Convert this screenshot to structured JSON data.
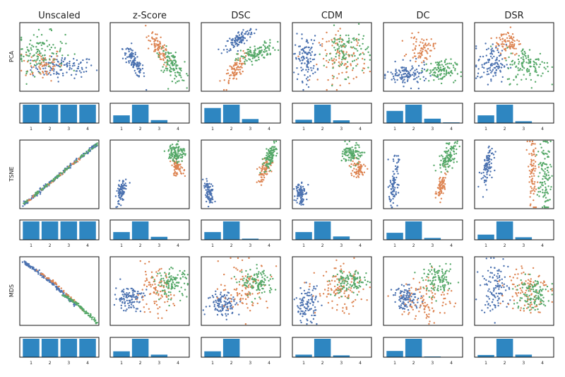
{
  "colors": {
    "blue": "#4c72b0",
    "orange": "#dd8452",
    "green": "#55a868",
    "bar": "#2e86c1"
  },
  "col_titles": [
    "Unscaled",
    "z-Score",
    "DSC",
    "CDM",
    "DC",
    "DSR"
  ],
  "row_labels": [
    "PCA",
    "TSNE",
    "MDS"
  ],
  "bar_tick_labels": [
    "1",
    "2",
    "3",
    "4"
  ],
  "chart_data": {
    "type": "scatter",
    "grid": false,
    "legend": "none",
    "scatter_panels": [
      [
        {
          "method": "Unscaled",
          "clusters": [
            {
              "color": "blue",
              "cx": 0.55,
              "cy": 0.35,
              "sx": 0.2,
              "sy": 0.08,
              "n": 110
            },
            {
              "color": "orange",
              "cx": 0.28,
              "cy": 0.4,
              "sx": 0.13,
              "sy": 0.12,
              "n": 70
            },
            {
              "color": "green",
              "cx": 0.25,
              "cy": 0.58,
              "sx": 0.16,
              "sy": 0.14,
              "n": 110
            }
          ]
        },
        {
          "method": "z-Score",
          "clusters": [
            {
              "color": "blue",
              "cx": 0.3,
              "cy": 0.42,
              "sx": 0.07,
              "sy": 0.12,
              "rho": -0.8,
              "n": 110
            },
            {
              "color": "orange",
              "cx": 0.62,
              "cy": 0.62,
              "sx": 0.06,
              "sy": 0.12,
              "rho": -0.75,
              "n": 90
            },
            {
              "color": "green",
              "cx": 0.78,
              "cy": 0.38,
              "sx": 0.08,
              "sy": 0.12,
              "rho": -0.6,
              "n": 110
            }
          ]
        },
        {
          "method": "DSC",
          "clusters": [
            {
              "color": "blue",
              "cx": 0.48,
              "cy": 0.76,
              "sx": 0.09,
              "sy": 0.08,
              "rho": 0.7,
              "n": 110
            },
            {
              "color": "orange",
              "cx": 0.42,
              "cy": 0.3,
              "sx": 0.07,
              "sy": 0.12,
              "rho": 0.75,
              "n": 80
            },
            {
              "color": "green",
              "cx": 0.7,
              "cy": 0.55,
              "sx": 0.12,
              "sy": 0.08,
              "rho": 0.6,
              "n": 120
            }
          ]
        },
        {
          "method": "CDM",
          "clusters": [
            {
              "color": "blue",
              "cx": 0.17,
              "cy": 0.48,
              "sx": 0.07,
              "sy": 0.16,
              "n": 110
            },
            {
              "color": "orange",
              "cx": 0.64,
              "cy": 0.48,
              "sx": 0.15,
              "sy": 0.18,
              "n": 110
            },
            {
              "color": "green",
              "cx": 0.68,
              "cy": 0.58,
              "sx": 0.14,
              "sy": 0.17,
              "n": 110
            }
          ]
        },
        {
          "method": "DC",
          "clusters": [
            {
              "color": "blue",
              "cx": 0.3,
              "cy": 0.24,
              "sx": 0.13,
              "sy": 0.08,
              "n": 120
            },
            {
              "color": "orange",
              "cx": 0.48,
              "cy": 0.62,
              "sx": 0.08,
              "sy": 0.09,
              "n": 70
            },
            {
              "color": "green",
              "cx": 0.72,
              "cy": 0.3,
              "sx": 0.1,
              "sy": 0.08,
              "n": 110
            }
          ]
        },
        {
          "method": "DSR",
          "clusters": [
            {
              "color": "blue",
              "cx": 0.22,
              "cy": 0.4,
              "sx": 0.09,
              "sy": 0.14,
              "n": 110
            },
            {
              "color": "orange",
              "cx": 0.42,
              "cy": 0.72,
              "sx": 0.08,
              "sy": 0.1,
              "n": 80
            },
            {
              "color": "green",
              "cx": 0.68,
              "cy": 0.38,
              "sx": 0.14,
              "sy": 0.13,
              "n": 120
            }
          ]
        }
      ],
      [
        {
          "method": "Unscaled",
          "clusters": [
            {
              "color": "blue",
              "type": "line",
              "x0": 0.03,
              "y0": 0.04,
              "x1": 0.97,
              "y1": 0.94,
              "spread": 0.012,
              "n": 160
            },
            {
              "color": "orange",
              "type": "line",
              "x0": 0.1,
              "y0": 0.11,
              "x1": 0.8,
              "y1": 0.77,
              "spread": 0.008,
              "n": 60
            },
            {
              "color": "green",
              "type": "line",
              "x0": 0.05,
              "y0": 0.06,
              "x1": 0.98,
              "y1": 0.95,
              "spread": 0.008,
              "n": 90
            }
          ]
        },
        {
          "method": "z-Score",
          "clusters": [
            {
              "color": "blue",
              "cx": 0.14,
              "cy": 0.24,
              "sx": 0.03,
              "sy": 0.09,
              "rho": 0.4,
              "n": 90
            },
            {
              "color": "orange",
              "cx": 0.85,
              "cy": 0.6,
              "sx": 0.04,
              "sy": 0.06,
              "n": 70
            },
            {
              "color": "green",
              "cx": 0.84,
              "cy": 0.82,
              "sx": 0.05,
              "sy": 0.07,
              "n": 110
            }
          ]
        },
        {
          "method": "DSC",
          "clusters": [
            {
              "color": "blue",
              "cx": 0.1,
              "cy": 0.22,
              "sx": 0.03,
              "sy": 0.08,
              "rho": -0.5,
              "n": 90
            },
            {
              "color": "orange",
              "cx": 0.8,
              "cy": 0.56,
              "sx": 0.05,
              "sy": 0.09,
              "rho": 0.6,
              "n": 70
            },
            {
              "color": "green",
              "cx": 0.87,
              "cy": 0.76,
              "sx": 0.04,
              "sy": 0.09,
              "rho": 0.6,
              "n": 110
            }
          ]
        },
        {
          "method": "CDM",
          "clusters": [
            {
              "color": "blue",
              "cx": 0.1,
              "cy": 0.24,
              "sx": 0.03,
              "sy": 0.09,
              "n": 90
            },
            {
              "color": "orange",
              "cx": 0.82,
              "cy": 0.58,
              "sx": 0.05,
              "sy": 0.07,
              "n": 70
            },
            {
              "color": "green",
              "cx": 0.76,
              "cy": 0.8,
              "sx": 0.06,
              "sy": 0.07,
              "n": 110
            }
          ]
        },
        {
          "method": "DC",
          "clusters": [
            {
              "color": "blue",
              "cx": 0.13,
              "cy": 0.38,
              "sx": 0.03,
              "sy": 0.17,
              "rho": 0.4,
              "n": 90
            },
            {
              "color": "orange",
              "cx": 0.73,
              "cy": 0.32,
              "sx": 0.03,
              "sy": 0.1,
              "rho": 0.5,
              "n": 70
            },
            {
              "color": "green",
              "cx": 0.82,
              "cy": 0.75,
              "sx": 0.06,
              "sy": 0.1,
              "rho": 0.5,
              "n": 110
            }
          ]
        },
        {
          "method": "DSR",
          "clusters": [
            {
              "color": "blue",
              "cx": 0.16,
              "cy": 0.62,
              "sx": 0.04,
              "sy": 0.15,
              "rho": 0.6,
              "n": 90
            },
            {
              "color": "orange",
              "cx": 0.73,
              "cy": 0.52,
              "sx": 0.03,
              "sy": 0.25,
              "n": 80
            },
            {
              "color": "green",
              "cx": 0.88,
              "cy": 0.48,
              "sx": 0.04,
              "sy": 0.27,
              "n": 110
            }
          ]
        }
      ],
      [
        {
          "method": "Unscaled",
          "clusters": [
            {
              "color": "blue",
              "type": "curve",
              "x0": 0.05,
              "y0": 0.92,
              "x1": 0.7,
              "y1": 0.3,
              "sag": 0.04,
              "spread": 0.01,
              "n": 150
            },
            {
              "color": "orange",
              "type": "curve",
              "x0": 0.2,
              "y0": 0.82,
              "x1": 0.8,
              "y1": 0.22,
              "sag": 0.04,
              "spread": 0.008,
              "n": 50
            },
            {
              "color": "green",
              "type": "curve",
              "x0": 0.55,
              "y0": 0.45,
              "x1": 0.98,
              "y1": 0.04,
              "sag": 0.02,
              "spread": 0.01,
              "n": 90
            }
          ]
        },
        {
          "method": "z-Score",
          "clusters": [
            {
              "color": "blue",
              "cx": 0.24,
              "cy": 0.4,
              "sx": 0.09,
              "sy": 0.09,
              "n": 110
            },
            {
              "color": "orange",
              "cx": 0.56,
              "cy": 0.48,
              "sx": 0.12,
              "sy": 0.16,
              "n": 100
            },
            {
              "color": "green",
              "cx": 0.78,
              "cy": 0.62,
              "sx": 0.1,
              "sy": 0.1,
              "n": 110
            }
          ]
        },
        {
          "method": "DSC",
          "clusters": [
            {
              "color": "blue",
              "cx": 0.28,
              "cy": 0.32,
              "sx": 0.1,
              "sy": 0.09,
              "n": 110
            },
            {
              "color": "orange",
              "cx": 0.55,
              "cy": 0.55,
              "sx": 0.16,
              "sy": 0.18,
              "n": 100
            },
            {
              "color": "green",
              "cx": 0.72,
              "cy": 0.62,
              "sx": 0.1,
              "sy": 0.1,
              "n": 110
            }
          ]
        },
        {
          "method": "CDM",
          "clusters": [
            {
              "color": "blue",
              "cx": 0.18,
              "cy": 0.3,
              "sx": 0.07,
              "sy": 0.13,
              "n": 110
            },
            {
              "color": "orange",
              "cx": 0.6,
              "cy": 0.5,
              "sx": 0.15,
              "sy": 0.16,
              "n": 110
            },
            {
              "color": "green",
              "cx": 0.72,
              "cy": 0.62,
              "sx": 0.11,
              "sy": 0.1,
              "n": 110
            }
          ]
        },
        {
          "method": "DC",
          "clusters": [
            {
              "color": "blue",
              "cx": 0.3,
              "cy": 0.4,
              "sx": 0.09,
              "sy": 0.08,
              "n": 110
            },
            {
              "color": "orange",
              "cx": 0.55,
              "cy": 0.38,
              "sx": 0.16,
              "sy": 0.18,
              "n": 100
            },
            {
              "color": "green",
              "cx": 0.7,
              "cy": 0.65,
              "sx": 0.1,
              "sy": 0.1,
              "n": 110
            }
          ]
        },
        {
          "method": "DSR",
          "clusters": [
            {
              "color": "blue",
              "cx": 0.25,
              "cy": 0.55,
              "sx": 0.09,
              "sy": 0.18,
              "n": 110
            },
            {
              "color": "orange",
              "cx": 0.66,
              "cy": 0.55,
              "sx": 0.13,
              "sy": 0.18,
              "n": 100
            },
            {
              "color": "green",
              "cx": 0.72,
              "cy": 0.45,
              "sx": 0.12,
              "sy": 0.13,
              "n": 110
            }
          ]
        }
      ]
    ],
    "bar_panels": [
      [
        {
          "method": "Unscaled",
          "values": [
            1.0,
            1.0,
            1.0,
            1.0
          ]
        },
        {
          "method": "z-Score",
          "values": [
            0.42,
            1.0,
            0.16,
            0.0
          ]
        },
        {
          "method": "DSC",
          "values": [
            0.82,
            1.0,
            0.22,
            0.0
          ]
        },
        {
          "method": "CDM",
          "values": [
            0.18,
            1.0,
            0.15,
            0.0
          ]
        },
        {
          "method": "DC",
          "values": [
            0.66,
            1.0,
            0.24,
            0.04
          ]
        },
        {
          "method": "DSR",
          "values": [
            0.42,
            1.0,
            0.1,
            0.0
          ]
        }
      ],
      [
        {
          "method": "Unscaled",
          "values": [
            1.0,
            1.0,
            1.0,
            1.0
          ]
        },
        {
          "method": "z-Score",
          "values": [
            0.42,
            1.0,
            0.16,
            0.0
          ]
        },
        {
          "method": "DSC",
          "values": [
            0.42,
            1.0,
            0.06,
            0.0
          ]
        },
        {
          "method": "CDM",
          "values": [
            0.42,
            1.0,
            0.18,
            0.0
          ]
        },
        {
          "method": "DC",
          "values": [
            0.38,
            1.0,
            0.1,
            0.0
          ]
        },
        {
          "method": "DSR",
          "values": [
            0.28,
            1.0,
            0.14,
            0.0
          ]
        }
      ],
      [
        {
          "method": "Unscaled",
          "values": [
            1.0,
            1.0,
            1.0,
            1.0
          ]
        },
        {
          "method": "z-Score",
          "values": [
            0.32,
            1.0,
            0.14,
            0.0
          ]
        },
        {
          "method": "DSC",
          "values": [
            0.32,
            1.0,
            0.0,
            0.0
          ]
        },
        {
          "method": "CDM",
          "values": [
            0.14,
            1.0,
            0.1,
            0.0
          ]
        },
        {
          "method": "DC",
          "values": [
            0.34,
            1.0,
            0.04,
            0.0
          ]
        },
        {
          "method": "DSR",
          "values": [
            0.12,
            1.0,
            0.14,
            0.0
          ]
        }
      ]
    ]
  }
}
